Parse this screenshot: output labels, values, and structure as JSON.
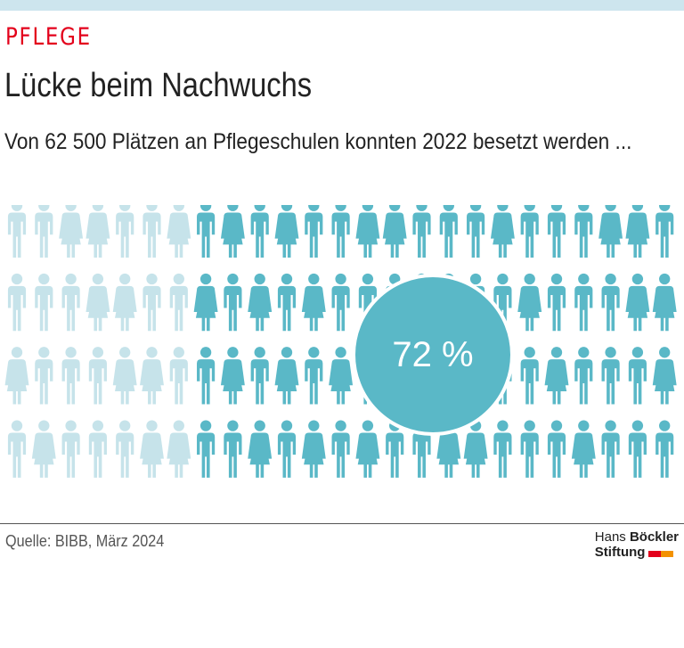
{
  "kicker": "PFLEGE",
  "title": "Lücke beim Nachwuchs",
  "subtitle": "Von 62 500 Plätzen an Pflegeschulen konnten 2022 besetzt werden ...",
  "source": "Quelle: BIBB, März 2024",
  "logo": {
    "line1_regular": "Hans ",
    "line1_bold": "Böckler",
    "line2_bold": "Stiftung",
    "colors": [
      "#e3001b",
      "#f39200"
    ]
  },
  "chart_data": {
    "type": "pictogram",
    "total_icons": 100,
    "filled_percent": 72,
    "label": "72 %",
    "total_places": 62500,
    "year": 2022,
    "colors": {
      "filled": "#5ab8c7",
      "empty": "#c6e3ea",
      "circle": "#5ab8c7"
    }
  }
}
